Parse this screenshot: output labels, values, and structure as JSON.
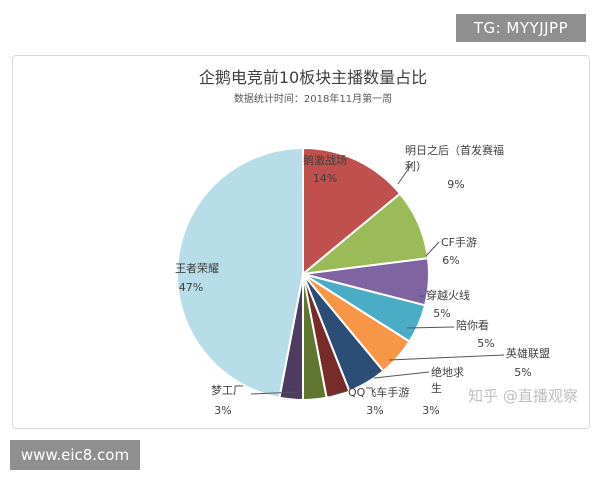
{
  "top_watermark": "TG: MYYJJPP",
  "bottom_watermark": "www.eic8.com",
  "zhihu_watermark": "知乎 @直播观察",
  "chart_data": {
    "type": "pie",
    "title": "企鹅电竞前10板块主播数量占比",
    "subtitle": "数据统计时间：2018年11月第一周",
    "categories": [
      "鹅激战场",
      "明日之后（首发赛福利）",
      "CF手游",
      "穿越火线",
      "陪你看",
      "英雄联盟",
      "绝地求生",
      "QQ飞车手游",
      "梦工厂",
      "王者荣耀"
    ],
    "values": [
      14,
      9,
      6,
      5,
      5,
      5,
      3,
      3,
      3,
      47
    ],
    "colors": [
      "#c0504d",
      "#9bbb59",
      "#8064a2",
      "#4bacc6",
      "#f79646",
      "#2c4d75",
      "#772c2a",
      "#5f7530",
      "#4d3b62",
      "#b7dde8"
    ],
    "value_labels": [
      "14%",
      "9%",
      "6%",
      "5%",
      "5%",
      "5%",
      "3%",
      "3%",
      "3%",
      "47%"
    ],
    "label_text": [
      [
        "鹅激战场"
      ],
      [
        "明日之后（首发赛福",
        "利）"
      ],
      [
        "CF手游"
      ],
      [
        "穿越火线"
      ],
      [
        "陪你看"
      ],
      [
        "英雄联盟"
      ],
      [
        "绝地求",
        "生"
      ],
      [
        "QQ飞车手游"
      ],
      [
        "梦工厂"
      ],
      [
        "王者荣耀"
      ]
    ]
  }
}
